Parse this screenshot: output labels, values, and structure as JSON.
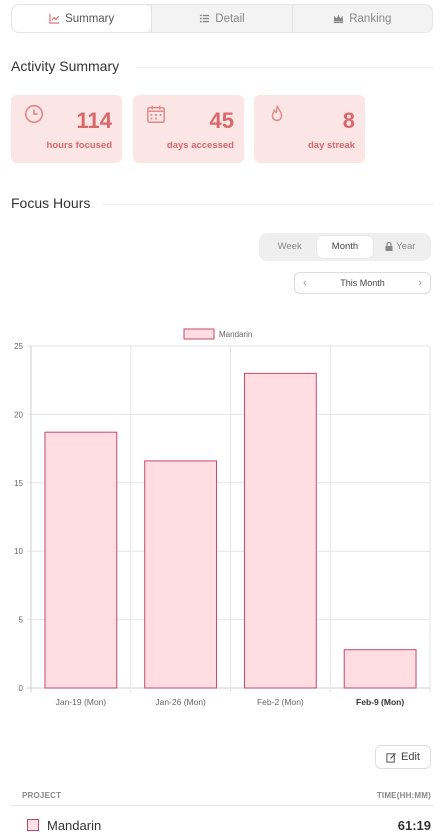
{
  "tabs": [
    {
      "label": "Summary",
      "icon": "chart-icon",
      "active": true
    },
    {
      "label": "Detail",
      "icon": "list-icon",
      "active": false
    },
    {
      "label": "Ranking",
      "icon": "crown-icon",
      "active": false
    }
  ],
  "activity": {
    "title": "Activity Summary",
    "cards": [
      {
        "value": "114",
        "label": "hours focused",
        "icon": "clock-icon"
      },
      {
        "value": "45",
        "label": "days accessed",
        "icon": "calendar-icon"
      },
      {
        "value": "8",
        "label": "day streak",
        "icon": "flame-icon"
      }
    ],
    "accent": "#d9686b",
    "card_bg": "#fbe5e5"
  },
  "focus": {
    "title": "Focus Hours",
    "range_options": [
      {
        "label": "Week",
        "active": false
      },
      {
        "label": "Month",
        "active": true
      },
      {
        "label": "Year",
        "active": false,
        "locked": true
      }
    ],
    "period_label": "This Month"
  },
  "chart_data": {
    "type": "bar",
    "categories": [
      "Jan-19 (Mon)",
      "Jan-26 (Mon)",
      "Feb-2 (Mon)",
      "Feb-9 (Mon)"
    ],
    "highlight_category": "Feb-9 (Mon)",
    "series": [
      {
        "name": "Mandarin",
        "values": [
          18.7,
          16.6,
          23.0,
          2.8
        ],
        "fill": "#ffdde3",
        "stroke": "#c24a6a"
      }
    ],
    "ylim": [
      0,
      25
    ],
    "yticks": [
      0,
      5,
      10,
      15,
      20,
      25
    ],
    "grid": true,
    "legend": "top-center"
  },
  "edit_label": "Edit",
  "table": {
    "headers": {
      "project": "PROJECT",
      "time": "TIME(HH:MM)"
    },
    "rows": [
      {
        "project": "Mandarin",
        "time": "61:19"
      }
    ]
  }
}
